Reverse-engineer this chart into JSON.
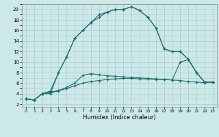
{
  "title": "",
  "xlabel": "Humidex (Indice chaleur)",
  "bg_color": "#cce8e8",
  "grid_color": "#aacccc",
  "line_color": "#1a6e6e",
  "xlim": [
    -0.5,
    23.5
  ],
  "ylim": [
    1.5,
    21.0
  ],
  "xticks": [
    0,
    1,
    2,
    3,
    4,
    5,
    6,
    7,
    8,
    9,
    10,
    11,
    12,
    13,
    14,
    15,
    16,
    17,
    18,
    19,
    20,
    21,
    22,
    23
  ],
  "yticks": [
    2,
    4,
    6,
    8,
    10,
    12,
    14,
    16,
    18,
    20
  ],
  "line1_x": [
    0,
    1,
    2,
    3,
    4,
    5,
    6,
    7,
    8,
    9,
    10,
    11,
    12,
    13,
    14,
    15,
    16,
    17,
    18,
    19,
    20,
    21,
    22,
    23
  ],
  "line1_y": [
    3.0,
    2.8,
    4.0,
    4.2,
    4.5,
    5.0,
    5.5,
    6.0,
    6.3,
    6.5,
    6.7,
    6.8,
    6.9,
    6.9,
    6.8,
    6.8,
    6.7,
    6.7,
    6.6,
    6.5,
    6.3,
    6.2,
    6.1,
    6.2
  ],
  "line2_x": [
    0,
    1,
    2,
    3,
    4,
    5,
    6,
    7,
    8,
    9,
    10,
    11,
    12,
    13,
    14,
    15,
    16,
    17,
    18,
    19,
    20,
    21,
    22,
    23
  ],
  "line2_y": [
    3.0,
    2.8,
    4.0,
    4.3,
    4.6,
    5.2,
    6.0,
    7.5,
    7.8,
    7.6,
    7.4,
    7.3,
    7.2,
    7.1,
    7.0,
    6.9,
    6.8,
    6.7,
    6.6,
    10.0,
    10.5,
    8.0,
    6.2,
    6.2
  ],
  "line3_x": [
    0,
    1,
    2,
    3,
    4,
    5,
    6,
    7,
    8,
    9,
    10,
    11,
    12,
    13,
    14,
    15,
    16,
    17,
    18,
    19,
    20,
    21,
    22,
    23
  ],
  "line3_y": [
    3.0,
    2.8,
    4.0,
    4.5,
    8.0,
    11.0,
    14.5,
    16.0,
    17.5,
    18.5,
    19.5,
    20.0,
    20.0,
    20.5,
    19.8,
    18.5,
    16.5,
    12.5,
    12.0,
    12.0,
    10.5,
    8.0,
    6.2,
    6.2
  ],
  "line4_x": [
    0,
    1,
    2,
    3,
    4,
    5,
    6,
    7,
    8,
    9,
    10,
    11,
    12,
    13,
    14,
    15,
    16,
    17,
    18,
    19,
    20,
    21,
    22,
    23
  ],
  "line4_y": [
    3.0,
    2.8,
    4.0,
    4.0,
    8.0,
    11.0,
    14.5,
    16.0,
    17.5,
    19.0,
    19.5,
    20.0,
    20.0,
    20.5,
    19.8,
    18.5,
    16.5,
    12.5,
    12.0,
    12.0,
    10.5,
    8.0,
    6.2,
    6.2
  ]
}
